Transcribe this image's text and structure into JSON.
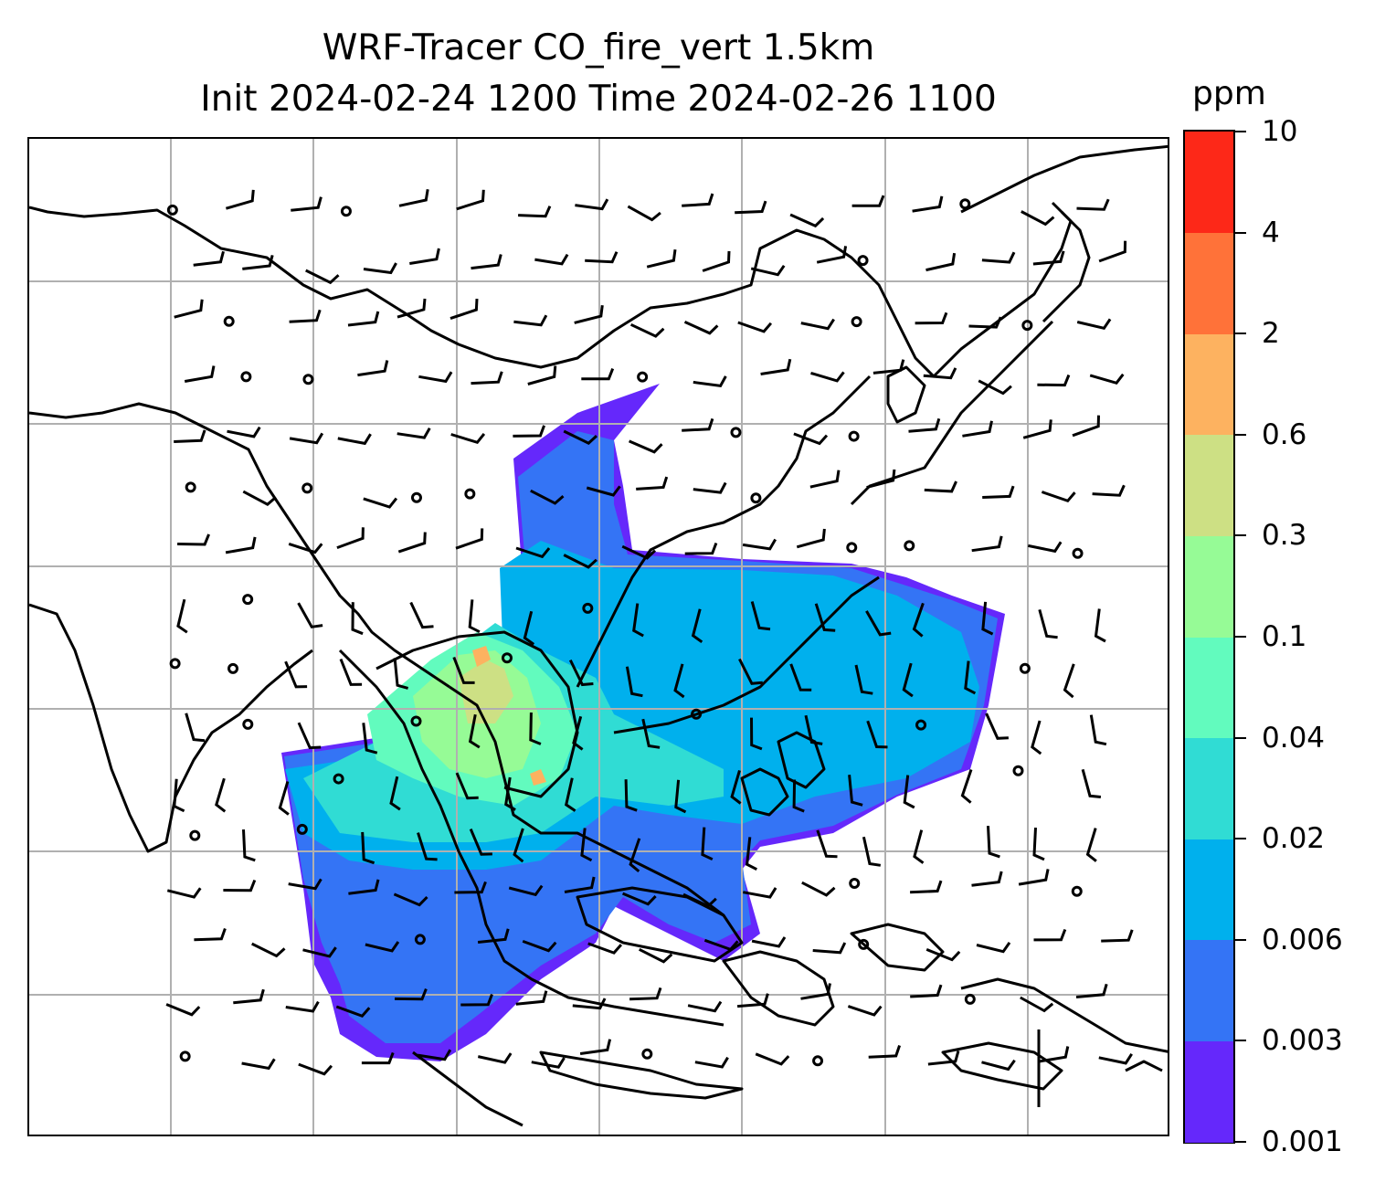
{
  "chart_data": {
    "type": "heatmap",
    "title": "WRF-Tracer CO_fire_vert 1.5km",
    "subtitle": "Init 2024-02-24 1200 Time 2024-02-26 1100",
    "colorbar": {
      "unit": "ppm",
      "levels": [
        "0.001",
        "0.003",
        "0.006",
        "0.02",
        "0.04",
        "0.1",
        "0.3",
        "0.6",
        "2",
        "4",
        "10"
      ],
      "colors": [
        "#6528fb",
        "#3474f5",
        "#00b0ed",
        "#30dcd4",
        "#62fbbe",
        "#96fb96",
        "#cde084",
        "#fdb260",
        "#ff7239",
        "#fd2818"
      ]
    },
    "grid": true,
    "overlays": [
      "coastlines",
      "national borders",
      "wind barbs"
    ]
  }
}
